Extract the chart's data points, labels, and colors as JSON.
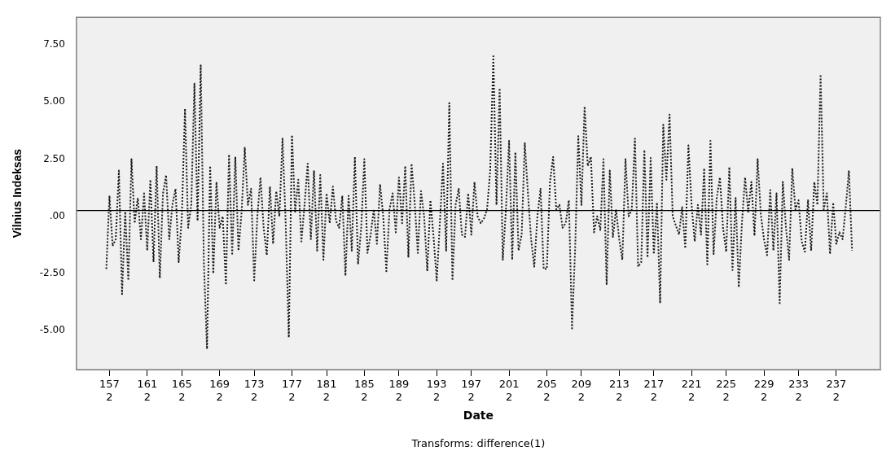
{
  "chart_data": {
    "type": "line",
    "xlabel": "Date",
    "ylabel": "Vilnius Indeksas",
    "annotations": [
      "Transforms: difference(1)"
    ],
    "ylim": [
      -6.7,
      8.7
    ],
    "categories": [
      null,
      "157\n2",
      null,
      null,
      null,
      null,
      null,
      null,
      null,
      null,
      null,
      null,
      null,
      "161\n2",
      null,
      null,
      null,
      null,
      null,
      null,
      null,
      null,
      null,
      null,
      "165\n2",
      null,
      null,
      null,
      null,
      null,
      null,
      null,
      null,
      null,
      null,
      null,
      "169\n2",
      null,
      null,
      null,
      null,
      null,
      null,
      null,
      null,
      null,
      null,
      "173\n2",
      null,
      null,
      null,
      null,
      null,
      null,
      null,
      null,
      null,
      null,
      null,
      "177\n2",
      null,
      null,
      null,
      null,
      null,
      null,
      null,
      null,
      null,
      null,
      "181\n2",
      null,
      null,
      null,
      null,
      null,
      null,
      null,
      null,
      null,
      null,
      null,
      "185\n2",
      null,
      null,
      null,
      null,
      null,
      null,
      null,
      null,
      null,
      null,
      "189\n2",
      null,
      null,
      null,
      null,
      null,
      null,
      null,
      null,
      null,
      null,
      null,
      "193\n2",
      null,
      null,
      null,
      null,
      null,
      null,
      null,
      null,
      null,
      null,
      "197\n2",
      null,
      null,
      null,
      null,
      null,
      null,
      null,
      null,
      null,
      null,
      null,
      "201\n2",
      null,
      null,
      null,
      null,
      null,
      null,
      null,
      null,
      null,
      null,
      null,
      "205\n2",
      null,
      null,
      null,
      null,
      null,
      null,
      null,
      null,
      null,
      null,
      "209\n2",
      null,
      null,
      null,
      null,
      null,
      null,
      null,
      null,
      null,
      null,
      null,
      "213\n2",
      null,
      null,
      null,
      null,
      null,
      null,
      null,
      null,
      null,
      null,
      "217\n2",
      null,
      null,
      null,
      null,
      null,
      null,
      null,
      null,
      null,
      null,
      null,
      "221\n2",
      null,
      null,
      null,
      null,
      null,
      null,
      null,
      null,
      null,
      null,
      "225\n2",
      null,
      null,
      null,
      null,
      null,
      null,
      null,
      null,
      null,
      null,
      null,
      "229\n2",
      null,
      null,
      null,
      null,
      null,
      null,
      null,
      null,
      null,
      null,
      "233\n2",
      null,
      null,
      null,
      null,
      null,
      null,
      null,
      null,
      null,
      null,
      null,
      "237\n2",
      null,
      null,
      null,
      null,
      null
    ],
    "yticks": [
      {
        "value": -5,
        "label": "-5.00"
      },
      {
        "value": -2.5,
        "label": "-2.50"
      },
      {
        "value": 0,
        "label": ".00"
      },
      {
        "value": 2.5,
        "label": "2.50"
      },
      {
        "value": 5,
        "label": "5.00"
      },
      {
        "value": 7.5,
        "label": "7.50"
      }
    ],
    "grid": false,
    "legend": false,
    "marker": "none",
    "line_style": "dotted",
    "ref_lines": [
      {
        "axis": "y",
        "value": 0.25,
        "color": "#000000",
        "line_style": "solid"
      }
    ],
    "series": [
      {
        "color": "#1a1a1a",
        "values": [
          -2.3,
          0.9,
          -1.3,
          -1.0,
          2.0,
          -3.4,
          0.2,
          -2.8,
          2.5,
          -0.3,
          0.8,
          -1.0,
          1.0,
          -1.5,
          1.6,
          -2.0,
          2.2,
          -2.7,
          1.0,
          1.8,
          -1.0,
          0.5,
          1.2,
          -2.0,
          0.0,
          4.7,
          -0.5,
          0.5,
          5.8,
          -0.2,
          6.6,
          -2.0,
          -5.8,
          2.2,
          -2.5,
          1.5,
          -0.5,
          0.0,
          -3.0,
          2.7,
          -1.7,
          2.6,
          -1.5,
          0.2,
          3.0,
          0.5,
          1.2,
          -2.8,
          0.0,
          1.7,
          -0.5,
          -1.7,
          1.3,
          -1.2,
          1.1,
          0.0,
          3.4,
          -0.3,
          -5.3,
          3.55,
          0.2,
          1.6,
          -1.1,
          0.5,
          2.3,
          -1.0,
          2.0,
          -1.5,
          1.8,
          -1.9,
          1.0,
          -0.3,
          1.3,
          -0.2,
          -0.5,
          0.9,
          -2.6,
          0.9,
          -1.5,
          2.6,
          -2.1,
          -0.5,
          2.5,
          -1.6,
          -0.8,
          0.3,
          -1.2,
          1.4,
          0.0,
          -2.4,
          0.3,
          1.0,
          -0.7,
          1.7,
          -0.3,
          2.2,
          -1.8,
          2.3,
          0.6,
          -1.6,
          1.1,
          0.0,
          -2.4,
          0.7,
          -0.9,
          -2.8,
          -0.3,
          2.3,
          -1.5,
          4.95,
          -2.8,
          0.5,
          1.2,
          -0.8,
          -0.9,
          1.0,
          -0.8,
          1.5,
          0.0,
          -0.3,
          -0.1,
          0.3,
          2.0,
          7.0,
          0.5,
          5.6,
          -1.9,
          0.3,
          3.3,
          -1.9,
          2.8,
          -1.5,
          -0.8,
          3.2,
          1.0,
          -1.0,
          -2.2,
          0.0,
          1.2,
          -2.3,
          -2.3,
          1.5,
          2.6,
          0.3,
          0.5,
          -0.5,
          -0.3,
          0.7,
          -4.9,
          -1.4,
          3.5,
          0.5,
          4.8,
          2.2,
          2.6,
          -0.7,
          0.0,
          -0.6,
          2.5,
          -3.0,
          2.0,
          -0.9,
          0.3,
          -1.0,
          -1.9,
          2.5,
          0.0,
          0.3,
          3.4,
          -2.2,
          -2.0,
          2.9,
          -1.8,
          2.55,
          -1.65,
          0.6,
          -3.8,
          4.0,
          1.6,
          4.45,
          0.0,
          -0.4,
          -0.8,
          0.4,
          -1.4,
          3.1,
          0.5,
          -1.1,
          0.5,
          -0.8,
          2.1,
          -2.1,
          3.3,
          -1.65,
          0.8,
          1.7,
          -0.5,
          -1.55,
          2.15,
          -2.35,
          0.8,
          -3.1,
          -0.3,
          1.7,
          0.2,
          1.5,
          -0.85,
          2.5,
          0.1,
          -1.0,
          -1.7,
          1.15,
          -1.5,
          1.0,
          -3.8,
          1.5,
          -0.5,
          -1.9,
          2.1,
          0.3,
          0.7,
          -1.1,
          -1.55,
          0.7,
          -1.5,
          1.5,
          0.5,
          6.2,
          0.3,
          1.0,
          -1.65,
          0.6,
          -1.2,
          -0.7,
          -1.0,
          0.4,
          2.0,
          -1.5
        ]
      }
    ]
  }
}
